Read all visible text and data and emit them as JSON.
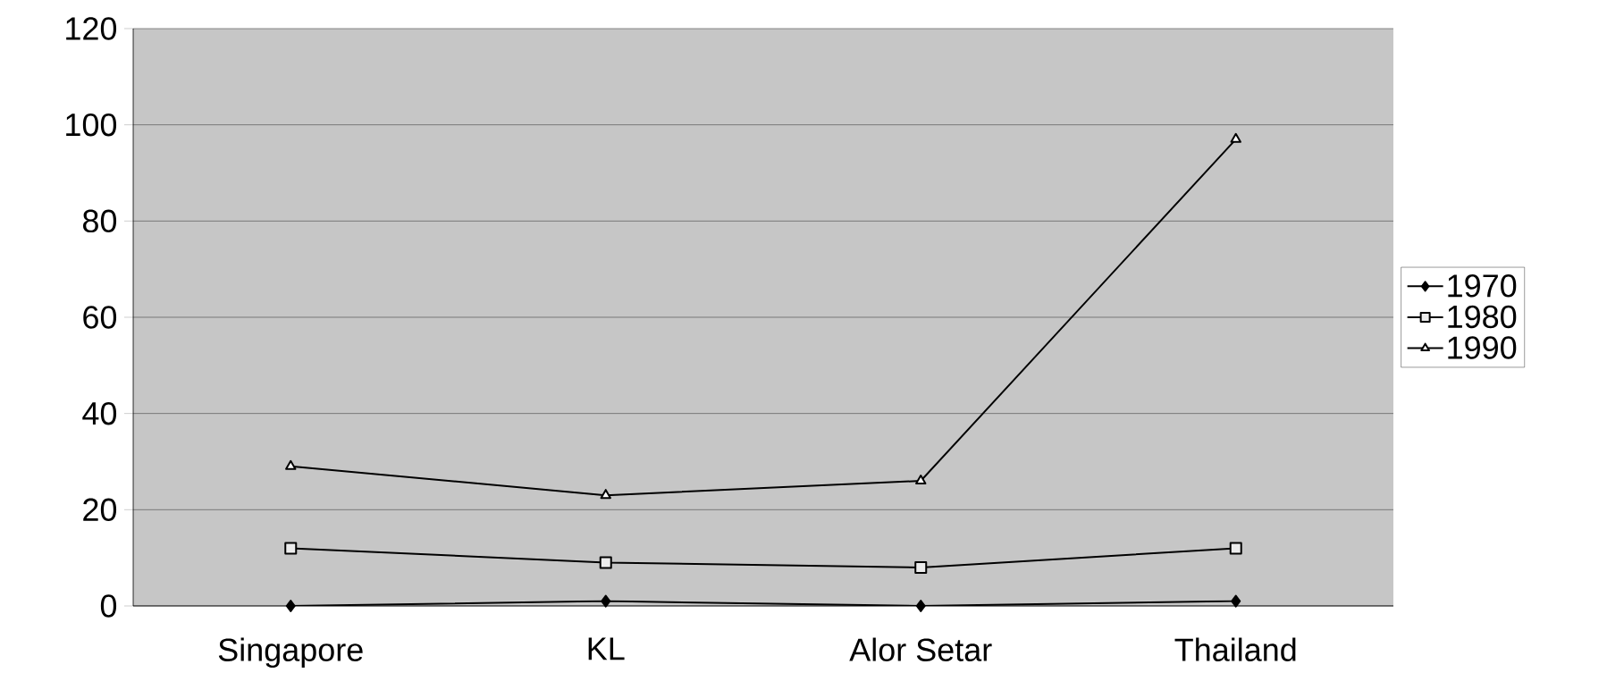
{
  "chart_data": {
    "type": "line",
    "categories": [
      "Singapore",
      "KL",
      "Alor Setar",
      "Thailand"
    ],
    "series": [
      {
        "name": "1970",
        "color": "#000000",
        "marker": "diamond",
        "values": [
          0,
          1,
          0,
          1
        ]
      },
      {
        "name": "1980",
        "color": "#000000",
        "marker": "square",
        "values": [
          12,
          9,
          8,
          12
        ]
      },
      {
        "name": "1990",
        "color": "#000000",
        "marker": "triangle",
        "values": [
          29,
          23,
          26,
          97
        ]
      }
    ],
    "ylim": [
      0,
      120
    ],
    "yticks": [
      0,
      20,
      40,
      60,
      80,
      100,
      120
    ],
    "grid": "y",
    "legend": "right"
  }
}
